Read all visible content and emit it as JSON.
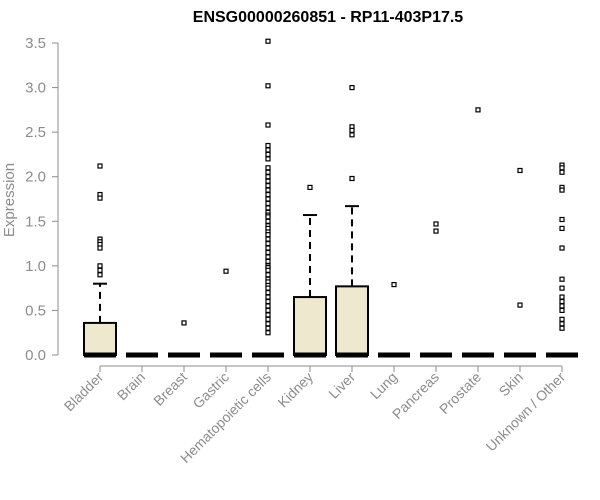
{
  "chart_data": {
    "type": "boxplot",
    "title": "ENSG00000260851 - RP11-403P17.5",
    "ylabel": "Expression",
    "xlabel": "",
    "ylim": [
      0,
      3.55
    ],
    "yticks": [
      "0.0",
      "0.5",
      "1.0",
      "1.5",
      "2.0",
      "2.5",
      "3.0",
      "3.5"
    ],
    "grid": false,
    "colors": {
      "box_fill": "#eee8cf",
      "box_stroke": "#000000",
      "axis": "#8c8c8c"
    },
    "categories": [
      "Bladder",
      "Brain",
      "Breast",
      "Gastric",
      "Hematopoietic cells",
      "Kidney",
      "Liver",
      "Lung",
      "Pancreas",
      "Prostate",
      "Skin",
      "Unknown / Other"
    ],
    "boxes": [
      {
        "category": "Bladder",
        "q1": 0,
        "median": 0,
        "q3": 0.36,
        "whisker_high": 0.8,
        "outliers": [
          2.12,
          1.8,
          1.76,
          1.3,
          1.27,
          1.24,
          1.2,
          1.0,
          0.95,
          0.9
        ]
      },
      {
        "category": "Brain",
        "q1": 0,
        "median": 0,
        "q3": 0,
        "whisker_high": 0,
        "outliers": []
      },
      {
        "category": "Breast",
        "q1": 0,
        "median": 0,
        "q3": 0,
        "whisker_high": 0,
        "outliers": [
          0.36
        ]
      },
      {
        "category": "Gastric",
        "q1": 0,
        "median": 0,
        "q3": 0,
        "whisker_high": 0,
        "outliers": [
          0.94
        ]
      },
      {
        "category": "Hematopoietic cells",
        "q1": 0,
        "median": 0,
        "q3": 0,
        "whisker_high": 0,
        "outliers": [
          3.52,
          3.02,
          2.58,
          2.35,
          2.3,
          2.25,
          2.2,
          2.1,
          2.05,
          2.0,
          1.95,
          1.9,
          1.85,
          1.8,
          1.75,
          1.7,
          1.65,
          1.6,
          1.57,
          1.55,
          1.5,
          1.45,
          1.42,
          1.38,
          1.35,
          1.3,
          1.25,
          1.2,
          1.15,
          1.1,
          1.05,
          1.0,
          0.98,
          0.95,
          0.9,
          0.85,
          0.82,
          0.78,
          0.75,
          0.7,
          0.65,
          0.6,
          0.55,
          0.5,
          0.45,
          0.4,
          0.35,
          0.3,
          0.25
        ]
      },
      {
        "category": "Kidney",
        "q1": 0,
        "median": 0,
        "q3": 0.65,
        "whisker_high": 1.57,
        "outliers": [
          1.88
        ]
      },
      {
        "category": "Liver",
        "q1": 0,
        "median": 0,
        "q3": 0.77,
        "whisker_high": 1.67,
        "outliers": [
          3.0,
          2.56,
          2.52,
          2.47,
          1.98
        ]
      },
      {
        "category": "Lung",
        "q1": 0,
        "median": 0,
        "q3": 0,
        "whisker_high": 0,
        "outliers": [
          0.79
        ]
      },
      {
        "category": "Pancreas",
        "q1": 0,
        "median": 0,
        "q3": 0,
        "whisker_high": 0,
        "outliers": [
          1.47,
          1.39
        ]
      },
      {
        "category": "Prostate",
        "q1": 0,
        "median": 0,
        "q3": 0,
        "whisker_high": 0,
        "outliers": [
          2.75
        ]
      },
      {
        "category": "Skin",
        "q1": 0,
        "median": 0,
        "q3": 0,
        "whisker_high": 0,
        "outliers": [
          2.07,
          0.56
        ]
      },
      {
        "category": "Unknown / Other",
        "q1": 0,
        "median": 0,
        "q3": 0,
        "whisker_high": 0,
        "outliers": [
          2.13,
          2.1,
          2.05,
          1.88,
          1.85,
          1.52,
          1.42,
          1.2,
          0.85,
          0.75,
          0.65,
          0.6,
          0.55,
          0.5,
          0.4,
          0.35,
          0.3
        ]
      }
    ]
  }
}
